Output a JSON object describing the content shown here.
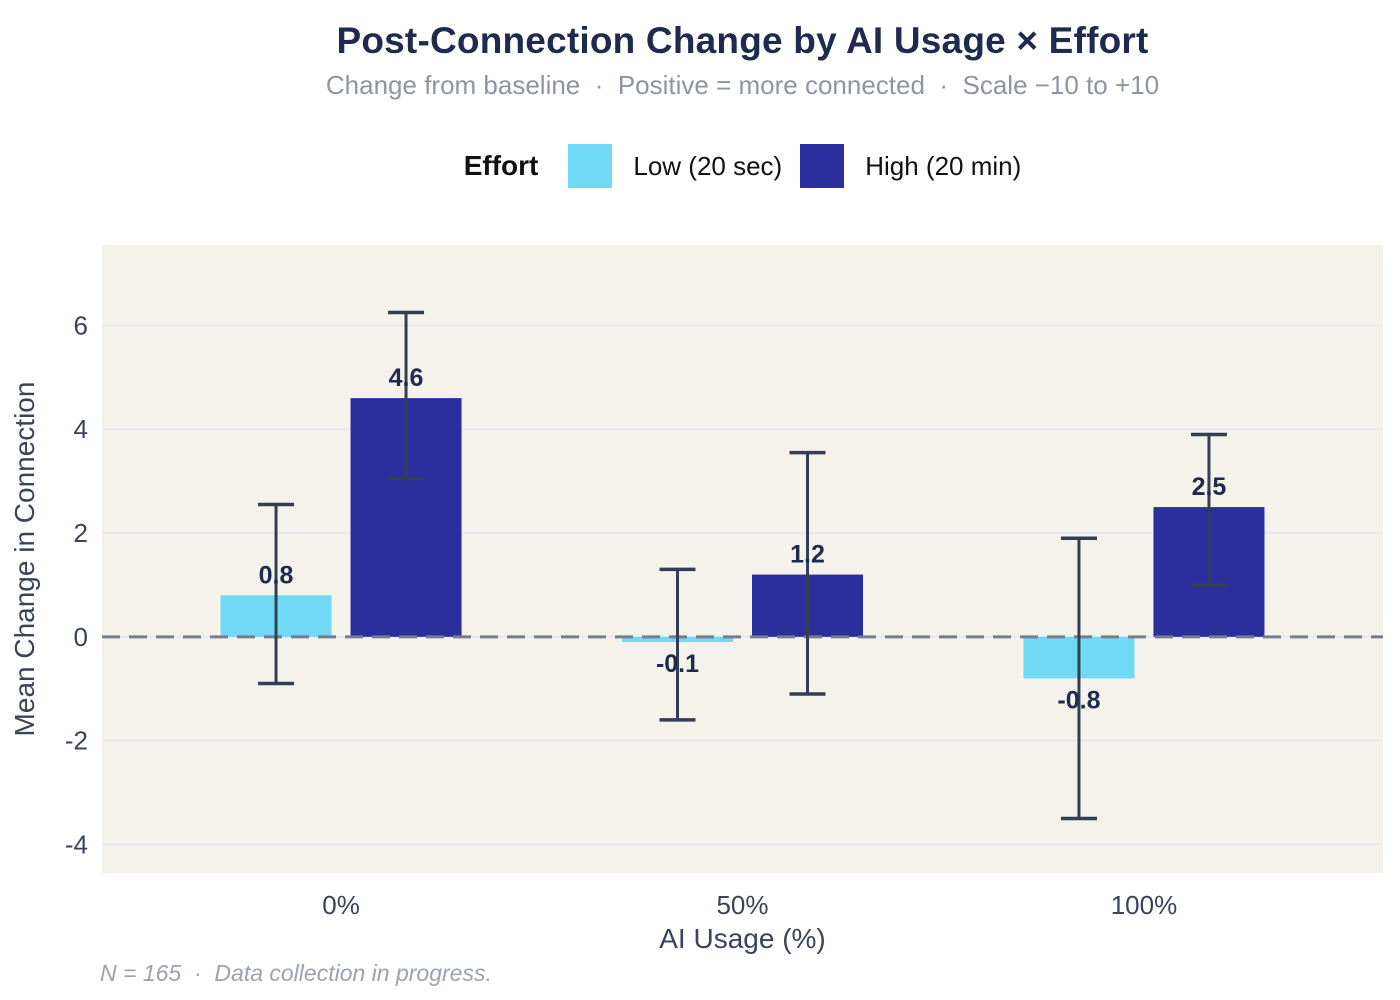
{
  "header": {
    "title": "Post-Connection Change by AI Usage × Effort",
    "subtitle": "Change from baseline  ·  Positive = more connected  ·  Scale −10 to +10"
  },
  "legend": {
    "title": "Effort",
    "items": [
      {
        "label": "Low (20 sec)",
        "color": "#6FD9F6"
      },
      {
        "label": "High (20 min)",
        "color": "#2B2F9D"
      }
    ]
  },
  "caption": "N = 165  ·  Data collection in progress.",
  "colors": {
    "title": "#1F2B4D",
    "subtitle": "#8F95A0",
    "caption": "#9CA2AD",
    "panel_bg": "#F5F2EC",
    "gridline": "#E7E8F2",
    "zero_line": "#757D8A",
    "error_bar": "#333E53",
    "value_label": "#1F2B4D",
    "axis_text": "#3A4458",
    "low_effort": "#6FD9F6",
    "high_effort": "#2B2F9D"
  },
  "chart_data": {
    "type": "bar",
    "title": "Post-Connection Change by AI Usage × Effort",
    "subtitle": "Change from baseline · Positive = more connected · Scale −10 to +10",
    "xlabel": "AI Usage (%)",
    "ylabel": "Mean Change in Connection",
    "categories": [
      "0%",
      "50%",
      "100%"
    ],
    "series": [
      {
        "name": "Low (20 sec)",
        "color": "#6FD9F6",
        "values": [
          0.8,
          -0.1,
          -0.8
        ],
        "labels": [
          "0.8",
          "-0.1",
          "-0.8"
        ],
        "ci_low": [
          -0.9,
          -1.6,
          -3.5
        ],
        "ci_high": [
          2.55,
          1.3,
          1.9
        ]
      },
      {
        "name": "High (20 min)",
        "color": "#2B2F9D",
        "values": [
          4.6,
          1.2,
          2.5
        ],
        "labels": [
          "4.6",
          "1.2",
          "2.5"
        ],
        "ci_low": [
          3.05,
          -1.1,
          1.0
        ],
        "ci_high": [
          6.25,
          3.55,
          3.9
        ]
      }
    ],
    "yticks": [
      -4,
      -2,
      0,
      2,
      4,
      6
    ],
    "ylim": [
      -4.55,
      7.55
    ],
    "zero_line": 0,
    "grid": "horizontal-major-only",
    "legend_position": "top",
    "legend_title": "Effort",
    "caption": "N = 165 · Data collection in progress."
  }
}
